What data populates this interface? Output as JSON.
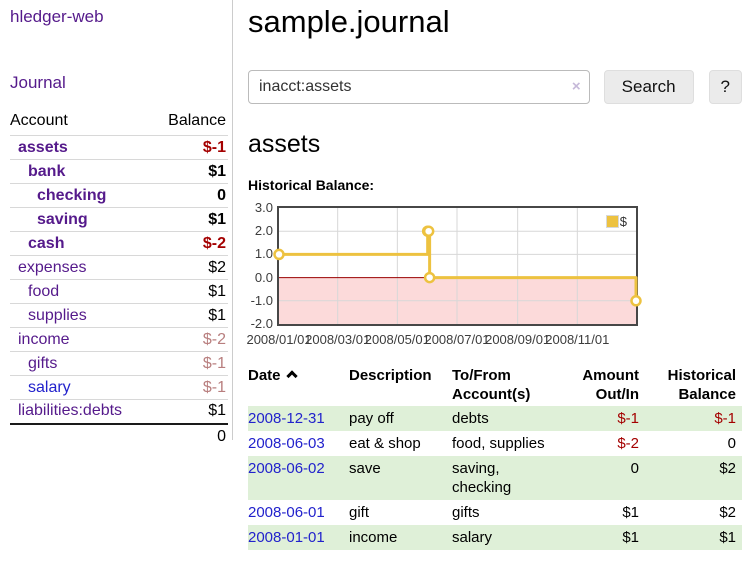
{
  "app": {
    "brand": "hledger-web"
  },
  "sidebar": {
    "journal_label": "Journal",
    "accounts_table": {
      "account_header": "Account",
      "balance_header": "Balance",
      "rows": [
        {
          "name": "assets",
          "acct_class": "purple d0 emph",
          "balance": "$-1",
          "bal_class": "neg emph"
        },
        {
          "name": "bank",
          "acct_class": "purple d1 emph",
          "balance": "$1",
          "bal_class": "emph"
        },
        {
          "name": "checking",
          "acct_class": "purple d2 emph",
          "balance": "0",
          "bal_class": "emph"
        },
        {
          "name": "saving",
          "acct_class": "purple d2 emph",
          "balance": "$1",
          "bal_class": "emph"
        },
        {
          "name": "cash",
          "acct_class": "purple d1 emph",
          "balance": "$-2",
          "bal_class": "neg emph"
        },
        {
          "name": "expenses",
          "acct_class": "purple d0",
          "balance": "$2",
          "bal_class": ""
        },
        {
          "name": "food",
          "acct_class": "purple d1",
          "balance": "$1",
          "bal_class": ""
        },
        {
          "name": "supplies",
          "acct_class": "purple d1",
          "balance": "$1",
          "bal_class": ""
        },
        {
          "name": "income",
          "acct_class": "purple d0",
          "balance": "$-2",
          "bal_class": "neg-soft"
        },
        {
          "name": "gifts",
          "acct_class": "purple d1",
          "balance": "$-1",
          "bal_class": "neg-soft"
        },
        {
          "name": "salary",
          "acct_class": "blue d1",
          "balance": "$-1",
          "bal_class": "neg-soft"
        },
        {
          "name": "liabilities:debts",
          "acct_class": "purple d0",
          "balance": "$1",
          "bal_class": ""
        }
      ],
      "total": "0"
    }
  },
  "main": {
    "title": "sample.journal",
    "search": {
      "value": "inacct:assets",
      "clear_label": "×",
      "search_button": "Search",
      "help_button": "?"
    },
    "account_heading": "assets",
    "section_label": "Historical Balance:"
  },
  "chart_data": {
    "type": "line",
    "step": true,
    "title": "Historical Balance:",
    "series": [
      {
        "name": "$",
        "color": "#edc240",
        "points": [
          [
            "2008-01-01",
            1
          ],
          [
            "2008-06-01",
            2
          ],
          [
            "2008-06-02",
            2
          ],
          [
            "2008-06-03",
            0
          ],
          [
            "2008-12-31",
            -1
          ]
        ]
      }
    ],
    "xrange": [
      "2008-01-01",
      "2008-12-31"
    ],
    "ylim": [
      -2,
      3
    ],
    "yticks": [
      "3.0",
      "2.0",
      "1.0",
      "0.0",
      "-1.0",
      "-2.0"
    ],
    "xticks": [
      "2008/01/01",
      "2008/03/01",
      "2008/05/01",
      "2008/07/01",
      "2008/09/01",
      "2008/11/01"
    ],
    "legend_position": "top-right",
    "grid": true,
    "grid_color": "#d7d7d7",
    "zero_line_color": "#990000",
    "negative_region_color": "#fcdada"
  },
  "register": {
    "headers": {
      "date": "Date",
      "description": "Description",
      "accounts": "To/From Account(s)",
      "amount": "Amount Out/In",
      "balance": "Historical Balance"
    },
    "sort_indicator": "asc",
    "rows": [
      {
        "date": "2008-12-31",
        "description": "pay off",
        "accounts": "debts",
        "amount": "$-1",
        "amount_class": "neg",
        "balance": "$-1",
        "balance_class": "neg",
        "row_class": "alt"
      },
      {
        "date": "2008-06-03",
        "description": "eat & shop",
        "accounts": "food, supplies",
        "amount": "$-2",
        "amount_class": "neg",
        "balance": "0",
        "balance_class": "",
        "row_class": ""
      },
      {
        "date": "2008-06-02",
        "description": "save",
        "accounts": "saving, checking",
        "amount": "0",
        "amount_class": "",
        "balance": "$2",
        "balance_class": "",
        "row_class": "alt"
      },
      {
        "date": "2008-06-01",
        "description": "gift",
        "accounts": "gifts",
        "amount": "$1",
        "amount_class": "",
        "balance": "$2",
        "balance_class": "",
        "row_class": ""
      },
      {
        "date": "2008-01-01",
        "description": "income",
        "accounts": "salary",
        "amount": "$1",
        "amount_class": "",
        "balance": "$1",
        "balance_class": "",
        "row_class": "alt"
      }
    ]
  }
}
